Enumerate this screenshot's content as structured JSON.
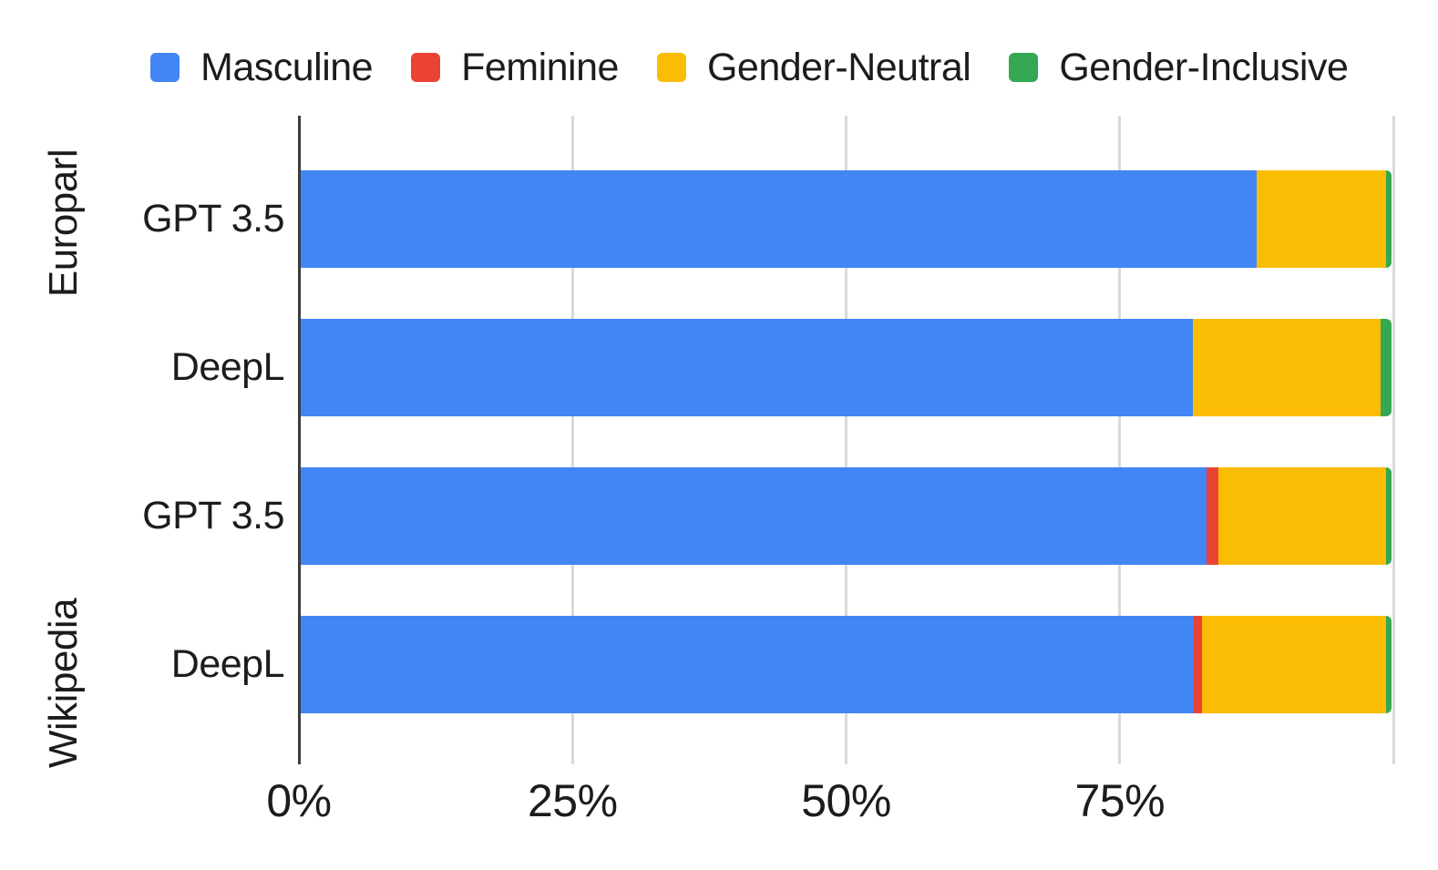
{
  "chart_data": {
    "type": "bar",
    "orientation": "horizontal",
    "stacked": true,
    "unit": "%",
    "title": "",
    "legend_position": "top",
    "grid": true,
    "series_names": [
      "Masculine",
      "Feminine",
      "Gender-Neutral",
      "Gender-Inclusive"
    ],
    "series_colors": {
      "Masculine": "#4285F4",
      "Feminine": "#EA4335",
      "Gender-Neutral": "#FBBC04",
      "Gender-Inclusive": "#34A853"
    },
    "xlim": [
      0,
      100
    ],
    "x_ticks": [
      {
        "value": 0,
        "label": "0%"
      },
      {
        "value": 25,
        "label": "25%"
      },
      {
        "value": 50,
        "label": "50%"
      },
      {
        "value": 75,
        "label": "75%"
      }
    ],
    "gridline_values": [
      25,
      50,
      75,
      100
    ],
    "groups": [
      {
        "label": "Europarl",
        "bars": [
          {
            "label": "GPT 3.5",
            "values": {
              "Masculine": 87.6,
              "Feminine": 0,
              "Gender-Neutral": 11.9,
              "Gender-Inclusive": 0.5
            }
          },
          {
            "label": "DeepL",
            "values": {
              "Masculine": 81.8,
              "Feminine": 0,
              "Gender-Neutral": 17.2,
              "Gender-Inclusive": 1.0
            }
          }
        ]
      },
      {
        "label": "Wikipedia",
        "bars": [
          {
            "label": "GPT 3.5",
            "values": {
              "Masculine": 83.0,
              "Feminine": 1.1,
              "Gender-Neutral": 15.4,
              "Gender-Inclusive": 0.5
            }
          },
          {
            "label": "DeepL",
            "values": {
              "Masculine": 81.9,
              "Feminine": 0.7,
              "Gender-Neutral": 16.9,
              "Gender-Inclusive": 0.5
            }
          }
        ]
      }
    ]
  }
}
